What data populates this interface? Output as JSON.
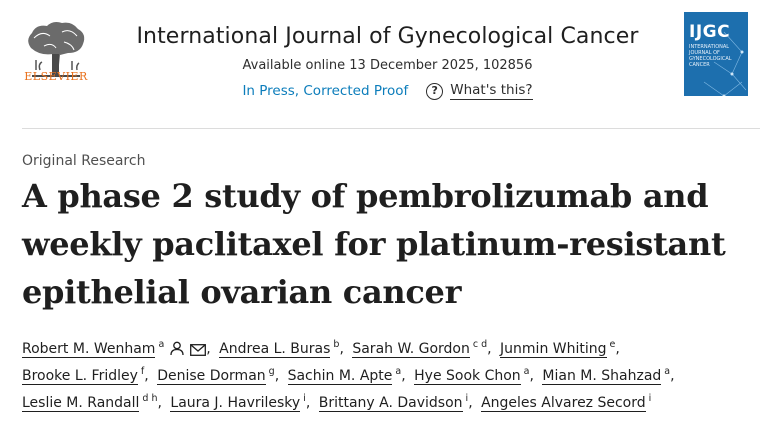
{
  "header": {
    "publisher": "ELSEVIER",
    "journal_title": "International Journal of Gynecological Cancer",
    "available_online": "Available online 13 December 2025, 102856",
    "status": "In Press, Corrected Proof",
    "whats_this": "What's this?",
    "help_glyph": "?",
    "cover": {
      "title": "IJGC",
      "subtitle": "INTERNATIONAL JOURNAL OF GYNECOLOGICAL CANCER"
    }
  },
  "article": {
    "type": "Original Research",
    "title_lines": [
      "A phase 2 study of pembrolizumab and",
      "weekly paclitaxel for platinum-resistant",
      "epithelial ovarian cancer"
    ]
  },
  "authors": [
    {
      "name": "Robert M. Wenham",
      "sup": "a",
      "icons": [
        "person-icon",
        "mail-icon"
      ]
    },
    {
      "name": "Andrea L. Buras",
      "sup": "b"
    },
    {
      "name": "Sarah W. Gordon",
      "sup": "c d"
    },
    {
      "name": "Junmin Whiting",
      "sup": "e"
    },
    {
      "name": "Brooke L. Fridley",
      "sup": "f"
    },
    {
      "name": "Denise Dorman",
      "sup": "g"
    },
    {
      "name": "Sachin M. Apte",
      "sup": "a"
    },
    {
      "name": "Hye Sook Chon",
      "sup": "a"
    },
    {
      "name": "Mian M. Shahzad",
      "sup": "a"
    },
    {
      "name": "Leslie M. Randall",
      "sup": "d h"
    },
    {
      "name": "Laura J. Havrilesky",
      "sup": "i"
    },
    {
      "name": "Brittany A. Davidson",
      "sup": "i"
    },
    {
      "name": "Angeles Alvarez Secord",
      "sup": "i"
    }
  ],
  "colors": {
    "link": "#0c7dbb",
    "publisher": "#e9711c",
    "cover": "#1d6fae"
  }
}
